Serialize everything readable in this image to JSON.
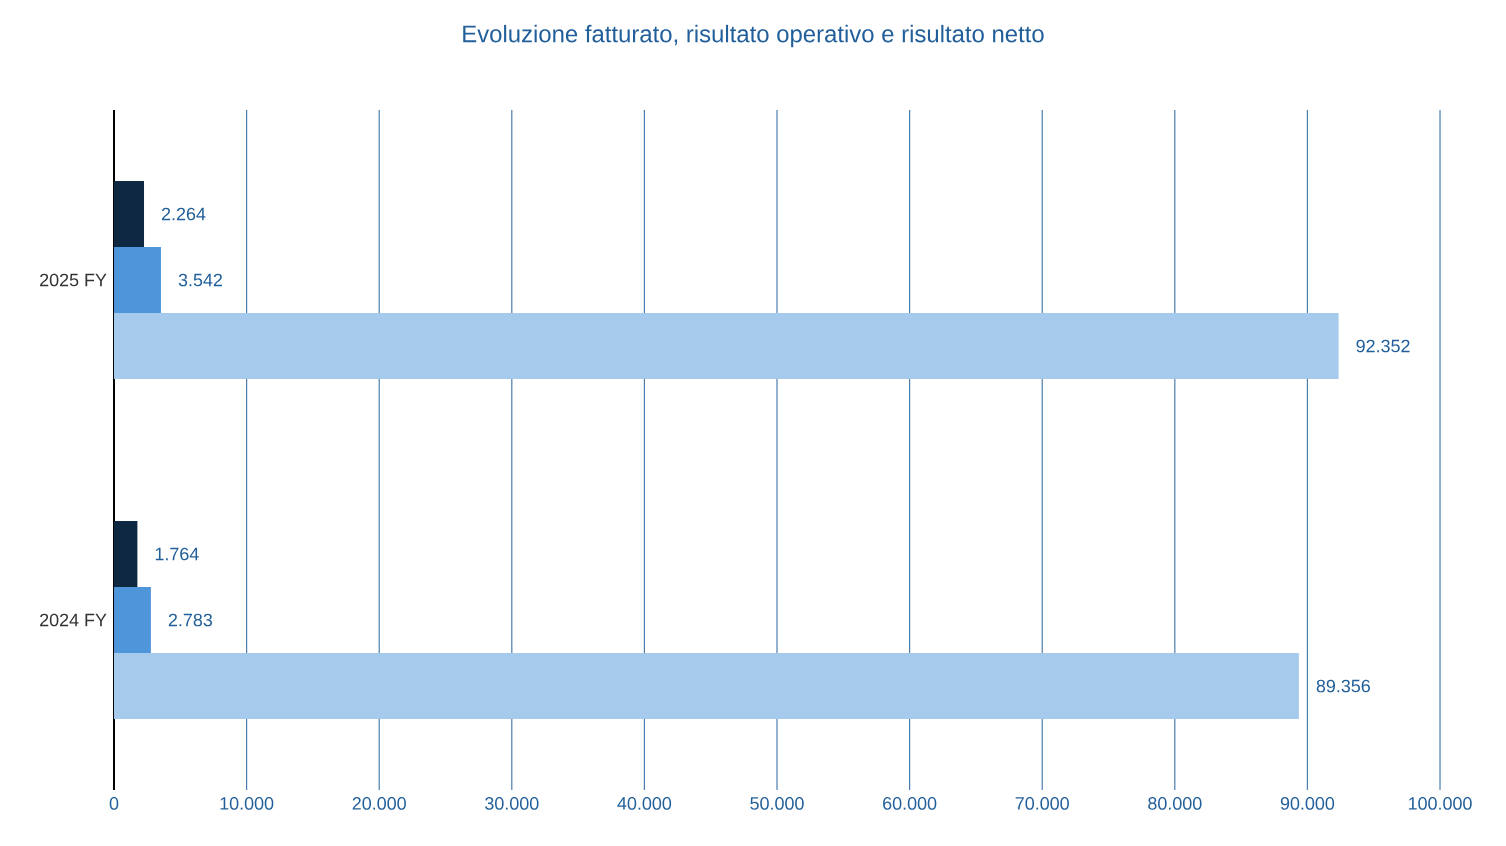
{
  "chart_data": {
    "type": "bar",
    "orientation": "horizontal",
    "title": "Evoluzione fatturato, risultato operativo e risultato netto",
    "categories": [
      "2025 FY",
      "2024 FY"
    ],
    "series": [
      {
        "color": "#0e2841",
        "values": [
          2264,
          1764
        ],
        "value_labels": [
          "2.264",
          "1.764"
        ]
      },
      {
        "color": "#4e95d9",
        "values": [
          3542,
          2783
        ],
        "value_labels": [
          "3.542",
          "2.783"
        ]
      },
      {
        "color": "#a6caec",
        "values": [
          92352,
          89356
        ],
        "value_labels": [
          "92.352",
          "89.356"
        ]
      }
    ],
    "xlim": [
      0,
      100000
    ],
    "xticks": [
      0,
      {
        "value": 10000,
        "label": "10.000"
      },
      {
        "value": 20000,
        "label": "20.000"
      },
      {
        "value": 30000,
        "label": "30.000"
      },
      {
        "value": 40000,
        "label": "40.000"
      },
      {
        "value": 50000,
        "label": "50.000"
      },
      {
        "value": 60000,
        "label": "60.000"
      },
      {
        "value": 70000,
        "label": "70.000"
      },
      {
        "value": 80000,
        "label": "80.000"
      },
      {
        "value": 90000,
        "label": "90.000"
      },
      {
        "value": 100000,
        "label": "100.000"
      }
    ],
    "grid": "x"
  }
}
